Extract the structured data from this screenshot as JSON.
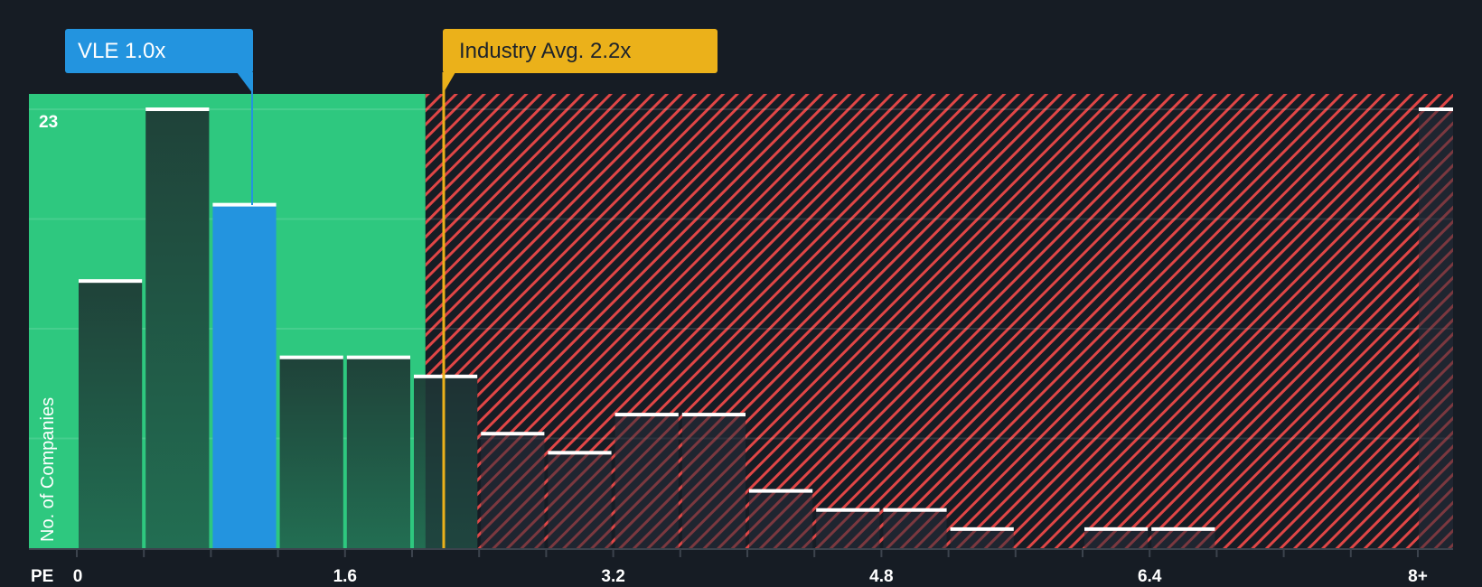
{
  "callouts": {
    "company": {
      "label": "VLE 1.0x",
      "value": 1.0,
      "color": "#2394df"
    },
    "industry": {
      "label": "Industry Avg. 2.2x",
      "value": 2.2,
      "color": "#ebb11a"
    }
  },
  "axis": {
    "x_title": "PE",
    "y_title": "No. of Companies",
    "y_max_label": "23",
    "x_tick_labels": [
      "0",
      "1.6",
      "3.2",
      "4.8",
      "6.4",
      "8+"
    ]
  },
  "colors": {
    "background": "#161c24",
    "fair_zone": "#2ec87f",
    "overvalued_hatch": "#e04646",
    "bar_dark": "#214d40",
    "bar_highlight": "#2394df",
    "bar_cap": "#ffffff"
  },
  "chart_data": {
    "type": "bar",
    "title": "",
    "xlabel": "PE",
    "ylabel": "No. of Companies",
    "ylim": [
      0,
      23
    ],
    "grid": true,
    "bin_width": 0.4,
    "categories": [
      "0-0.4",
      "0.4-0.8",
      "0.8-1.2",
      "1.2-1.6",
      "1.6-2.0",
      "2.0-2.4",
      "2.4-2.8",
      "2.8-3.2",
      "3.2-3.6",
      "3.6-4.0",
      "4.0-4.4",
      "4.4-4.8",
      "4.8-5.2",
      "5.2-5.6",
      "5.6-6.0",
      "6.0-6.4",
      "6.4-6.8",
      "6.8-7.2",
      "7.2-7.6",
      "7.6-8.0",
      "8+"
    ],
    "values": [
      14,
      23,
      18,
      10,
      10,
      9,
      6,
      5,
      7,
      7,
      3,
      2,
      2,
      1,
      0,
      1,
      1,
      0,
      0,
      0,
      23
    ],
    "highlight_index": 2,
    "x_tick_labels": [
      "0",
      "1.6",
      "3.2",
      "4.8",
      "6.4",
      "8+"
    ],
    "y_tick_labels": [
      "23"
    ],
    "annotations": [
      {
        "label": "VLE 1.0x",
        "x": 1.0
      },
      {
        "label": "Industry Avg. 2.2x",
        "x": 2.2
      }
    ],
    "zones": [
      {
        "name": "fair",
        "from": 0,
        "to": 2.08,
        "color": "#2ec87f"
      },
      {
        "name": "overvalued",
        "from": 2.08,
        "to": 8.4,
        "pattern": "red-diagonal-hatch"
      }
    ]
  }
}
